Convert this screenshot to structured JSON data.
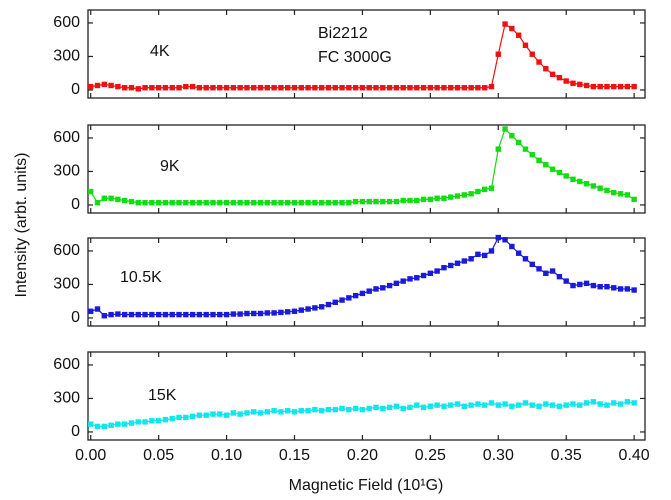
{
  "figure": {
    "xlabel": "Magnetic Field (10¹G)",
    "ylabel": "Intensity (arbt. units)"
  },
  "chart_data": [
    {
      "type": "line",
      "panel_label": "4K",
      "annotation": [
        "Bi2212",
        "FC 3000G"
      ],
      "color": "#ee1111",
      "x": [
        0,
        0.005,
        0.01,
        0.015,
        0.02,
        0.025,
        0.03,
        0.035,
        0.04,
        0.045,
        0.05,
        0.055,
        0.06,
        0.065,
        0.07,
        0.075,
        0.08,
        0.085,
        0.09,
        0.095,
        0.1,
        0.105,
        0.11,
        0.115,
        0.12,
        0.125,
        0.13,
        0.135,
        0.14,
        0.145,
        0.15,
        0.155,
        0.16,
        0.165,
        0.17,
        0.175,
        0.18,
        0.185,
        0.19,
        0.195,
        0.2,
        0.205,
        0.21,
        0.215,
        0.22,
        0.225,
        0.23,
        0.235,
        0.24,
        0.245,
        0.25,
        0.255,
        0.26,
        0.265,
        0.27,
        0.275,
        0.28,
        0.285,
        0.29,
        0.295,
        0.3,
        0.305,
        0.31,
        0.315,
        0.32,
        0.325,
        0.33,
        0.335,
        0.34,
        0.345,
        0.35,
        0.355,
        0.36,
        0.365,
        0.37,
        0.375,
        0.38,
        0.385,
        0.39,
        0.395,
        0.4
      ],
      "values": [
        30,
        40,
        50,
        40,
        30,
        20,
        20,
        10,
        20,
        20,
        20,
        20,
        20,
        20,
        30,
        30,
        20,
        20,
        20,
        20,
        20,
        20,
        20,
        20,
        20,
        20,
        20,
        20,
        20,
        20,
        20,
        20,
        20,
        20,
        20,
        20,
        20,
        20,
        20,
        20,
        20,
        20,
        20,
        20,
        20,
        20,
        20,
        20,
        20,
        20,
        20,
        20,
        20,
        20,
        20,
        20,
        20,
        20,
        20,
        30,
        320,
        590,
        550,
        490,
        400,
        320,
        250,
        190,
        140,
        110,
        80,
        60,
        50,
        40,
        30,
        30,
        30,
        30,
        30,
        30,
        30
      ],
      "xlim": [
        -0.002,
        0.408
      ],
      "ylim": [
        -72,
        716
      ],
      "yticks": [
        0,
        300,
        600
      ],
      "xticks": [
        0,
        0.05,
        0.1,
        0.15,
        0.2,
        0.25,
        0.3,
        0.35,
        0.4
      ]
    },
    {
      "type": "line",
      "panel_label": "9K",
      "color": "#11dd11",
      "x": [
        0,
        0.005,
        0.01,
        0.015,
        0.02,
        0.025,
        0.03,
        0.035,
        0.04,
        0.045,
        0.05,
        0.055,
        0.06,
        0.065,
        0.07,
        0.075,
        0.08,
        0.085,
        0.09,
        0.095,
        0.1,
        0.105,
        0.11,
        0.115,
        0.12,
        0.125,
        0.13,
        0.135,
        0.14,
        0.145,
        0.15,
        0.155,
        0.16,
        0.165,
        0.17,
        0.175,
        0.18,
        0.185,
        0.19,
        0.195,
        0.2,
        0.205,
        0.21,
        0.215,
        0.22,
        0.225,
        0.23,
        0.235,
        0.24,
        0.245,
        0.25,
        0.255,
        0.26,
        0.265,
        0.27,
        0.275,
        0.28,
        0.285,
        0.29,
        0.295,
        0.3,
        0.305,
        0.31,
        0.315,
        0.32,
        0.325,
        0.33,
        0.335,
        0.34,
        0.345,
        0.35,
        0.355,
        0.36,
        0.365,
        0.37,
        0.375,
        0.38,
        0.385,
        0.39,
        0.395,
        0.4
      ],
      "values": [
        120,
        20,
        60,
        60,
        50,
        40,
        30,
        20,
        20,
        20,
        20,
        20,
        20,
        20,
        20,
        20,
        20,
        20,
        20,
        20,
        20,
        20,
        20,
        20,
        20,
        20,
        20,
        20,
        20,
        20,
        20,
        20,
        20,
        20,
        20,
        20,
        20,
        20,
        20,
        30,
        30,
        30,
        30,
        30,
        30,
        30,
        40,
        40,
        40,
        50,
        50,
        60,
        60,
        70,
        80,
        90,
        100,
        120,
        140,
        150,
        500,
        680,
        620,
        560,
        500,
        450,
        400,
        360,
        320,
        290,
        260,
        230,
        210,
        190,
        170,
        150,
        130,
        110,
        100,
        90,
        50
      ],
      "xlim": [
        -0.002,
        0.408
      ],
      "ylim": [
        -72,
        716
      ],
      "yticks": [
        0,
        300,
        600
      ],
      "xticks": [
        0,
        0.05,
        0.1,
        0.15,
        0.2,
        0.25,
        0.3,
        0.35,
        0.4
      ]
    },
    {
      "type": "line",
      "panel_label": "10.5K",
      "color": "#1a1add",
      "x": [
        0,
        0.005,
        0.01,
        0.015,
        0.02,
        0.025,
        0.03,
        0.035,
        0.04,
        0.045,
        0.05,
        0.055,
        0.06,
        0.065,
        0.07,
        0.075,
        0.08,
        0.085,
        0.09,
        0.095,
        0.1,
        0.105,
        0.11,
        0.115,
        0.12,
        0.125,
        0.13,
        0.135,
        0.14,
        0.145,
        0.15,
        0.155,
        0.16,
        0.165,
        0.17,
        0.175,
        0.18,
        0.185,
        0.19,
        0.195,
        0.2,
        0.205,
        0.21,
        0.215,
        0.22,
        0.225,
        0.23,
        0.235,
        0.24,
        0.245,
        0.25,
        0.255,
        0.26,
        0.265,
        0.27,
        0.275,
        0.28,
        0.285,
        0.29,
        0.295,
        0.3,
        0.305,
        0.31,
        0.315,
        0.32,
        0.325,
        0.33,
        0.335,
        0.34,
        0.345,
        0.35,
        0.355,
        0.36,
        0.365,
        0.37,
        0.375,
        0.38,
        0.385,
        0.39,
        0.395,
        0.4
      ],
      "values": [
        60,
        80,
        20,
        30,
        35,
        30,
        30,
        30,
        30,
        30,
        30,
        30,
        30,
        30,
        30,
        30,
        30,
        30,
        30,
        30,
        30,
        35,
        35,
        40,
        40,
        40,
        45,
        45,
        50,
        55,
        60,
        70,
        80,
        90,
        100,
        120,
        140,
        160,
        180,
        200,
        220,
        240,
        260,
        270,
        290,
        310,
        330,
        350,
        360,
        380,
        400,
        420,
        450,
        470,
        490,
        510,
        530,
        570,
        560,
        600,
        720,
        700,
        640,
        580,
        530,
        480,
        440,
        400,
        420,
        370,
        330,
        290,
        300,
        310,
        290,
        280,
        280,
        270,
        260,
        260,
        250
      ],
      "xlim": [
        -0.002,
        0.408
      ],
      "ylim": [
        -72,
        716
      ],
      "yticks": [
        0,
        300,
        600
      ],
      "xticks": [
        0,
        0.05,
        0.1,
        0.15,
        0.2,
        0.25,
        0.3,
        0.35,
        0.4
      ]
    },
    {
      "type": "line",
      "panel_label": "15K",
      "color": "#11e6ee",
      "x": [
        0,
        0.005,
        0.01,
        0.015,
        0.02,
        0.025,
        0.03,
        0.035,
        0.04,
        0.045,
        0.05,
        0.055,
        0.06,
        0.065,
        0.07,
        0.075,
        0.08,
        0.085,
        0.09,
        0.095,
        0.1,
        0.105,
        0.11,
        0.115,
        0.12,
        0.125,
        0.13,
        0.135,
        0.14,
        0.145,
        0.15,
        0.155,
        0.16,
        0.165,
        0.17,
        0.175,
        0.18,
        0.185,
        0.19,
        0.195,
        0.2,
        0.205,
        0.21,
        0.215,
        0.22,
        0.225,
        0.23,
        0.235,
        0.24,
        0.245,
        0.25,
        0.255,
        0.26,
        0.265,
        0.27,
        0.275,
        0.28,
        0.285,
        0.29,
        0.295,
        0.3,
        0.305,
        0.31,
        0.315,
        0.32,
        0.325,
        0.33,
        0.335,
        0.34,
        0.345,
        0.35,
        0.355,
        0.36,
        0.365,
        0.37,
        0.375,
        0.38,
        0.385,
        0.39,
        0.395,
        0.4
      ],
      "values": [
        70,
        50,
        50,
        60,
        70,
        70,
        80,
        90,
        90,
        100,
        100,
        110,
        120,
        130,
        130,
        140,
        150,
        150,
        160,
        160,
        150,
        170,
        160,
        170,
        180,
        170,
        180,
        190,
        180,
        190,
        180,
        190,
        190,
        200,
        190,
        200,
        200,
        210,
        200,
        210,
        200,
        210,
        220,
        210,
        220,
        230,
        210,
        220,
        240,
        220,
        230,
        240,
        230,
        240,
        250,
        230,
        240,
        250,
        240,
        260,
        240,
        250,
        230,
        240,
        260,
        240,
        230,
        250,
        240,
        230,
        240,
        250,
        240,
        260,
        270,
        250,
        240,
        260,
        250,
        270,
        260
      ],
      "xlim": [
        -0.002,
        0.408
      ],
      "ylim": [
        -72,
        716
      ],
      "yticks": [
        0,
        300,
        600
      ],
      "xticks": [
        {
          "value": 0,
          "label": "0.00"
        },
        {
          "value": 0.05,
          "label": "0.05"
        },
        {
          "value": 0.1,
          "label": "0.10"
        },
        {
          "value": 0.15,
          "label": "0.15"
        },
        {
          "value": 0.2,
          "label": "0.20"
        },
        {
          "value": 0.25,
          "label": "0.25"
        },
        {
          "value": 0.3,
          "label": "0.30"
        },
        {
          "value": 0.35,
          "label": "0.35"
        },
        {
          "value": 0.4,
          "label": "0.40"
        }
      ]
    }
  ]
}
